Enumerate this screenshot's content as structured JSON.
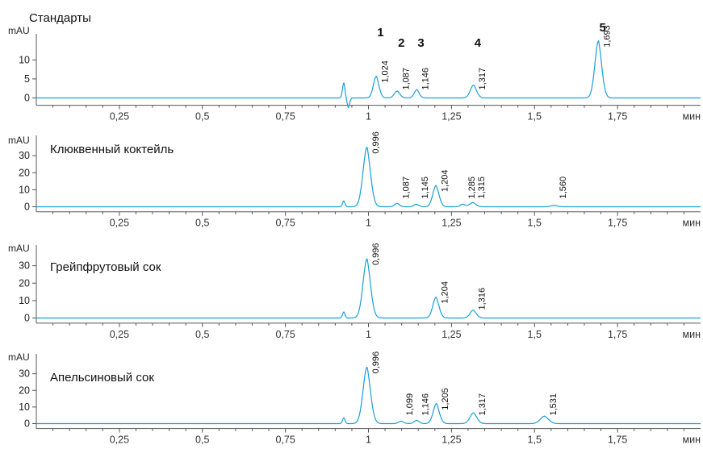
{
  "trace_color": "#1a9fd6",
  "chart_data": [
    {
      "type": "line",
      "title": "Стандарты",
      "ylabel": "mAU",
      "xlabel": "мин",
      "xlim": [
        0,
        2.0
      ],
      "ylim": [
        -1.5,
        16
      ],
      "yticks": [
        0,
        5,
        10
      ],
      "xticks": [
        0.25,
        0.5,
        0.75,
        1,
        1.25,
        1.5,
        1.75
      ],
      "xtick_labels": [
        "0,25",
        "0,5",
        "0,75",
        "1",
        "1,25",
        "1,5",
        "1,75"
      ],
      "peaks": [
        {
          "rt": 0.926,
          "height": 4,
          "width": 0.004
        },
        {
          "rt": 0.94,
          "height": -2.5,
          "width": 0.004
        },
        {
          "rt": 1.024,
          "height": 5.7,
          "width": 0.009
        },
        {
          "rt": 1.087,
          "height": 1.8,
          "width": 0.009
        },
        {
          "rt": 1.146,
          "height": 2.2,
          "width": 0.008
        },
        {
          "rt": 1.317,
          "height": 3.4,
          "width": 0.01
        },
        {
          "rt": 1.693,
          "height": 15,
          "width": 0.011
        }
      ],
      "peak_labels": [
        {
          "rt": 1.024,
          "label": "1,024"
        },
        {
          "rt": 1.087,
          "label": "1,087"
        },
        {
          "rt": 1.146,
          "label": "1,146"
        },
        {
          "rt": 1.317,
          "label": "1,317"
        },
        {
          "rt": 1.693,
          "label": "1,693"
        }
      ],
      "peak_numbers": [
        {
          "rt": 1.024,
          "label": "1"
        },
        {
          "rt": 1.087,
          "label": "2"
        },
        {
          "rt": 1.146,
          "label": "3"
        },
        {
          "rt": 1.317,
          "label": "4"
        },
        {
          "rt": 1.693,
          "label": "5"
        }
      ]
    },
    {
      "type": "line",
      "title": "Клюквенный коктейль",
      "ylabel": "mAU",
      "xlabel": "мин",
      "xlim": [
        0,
        2.0
      ],
      "ylim": [
        -2,
        40
      ],
      "yticks": [
        0,
        10,
        20,
        30
      ],
      "xticks": [
        0.25,
        0.5,
        0.75,
        1,
        1.25,
        1.5,
        1.75
      ],
      "xtick_labels": [
        "0,25",
        "0,5",
        "0,75",
        "1",
        "1,25",
        "1,5",
        "1,75"
      ],
      "peaks": [
        {
          "rt": 0.926,
          "height": 3.5,
          "width": 0.004
        },
        {
          "rt": 0.996,
          "height": 35,
          "width": 0.012
        },
        {
          "rt": 1.087,
          "height": 2.0,
          "width": 0.008
        },
        {
          "rt": 1.145,
          "height": 1.5,
          "width": 0.008
        },
        {
          "rt": 1.204,
          "height": 12.5,
          "width": 0.01
        },
        {
          "rt": 1.285,
          "height": 1.5,
          "width": 0.008
        },
        {
          "rt": 1.315,
          "height": 2.5,
          "width": 0.01
        },
        {
          "rt": 1.56,
          "height": 0.8,
          "width": 0.01
        }
      ],
      "peak_labels": [
        {
          "rt": 0.996,
          "label": "0,996"
        },
        {
          "rt": 1.087,
          "label": "1,087"
        },
        {
          "rt": 1.145,
          "label": "1,145"
        },
        {
          "rt": 1.204,
          "label": "1,204"
        },
        {
          "rt": 1.285,
          "label": "1,285"
        },
        {
          "rt": 1.315,
          "label": "1,315"
        },
        {
          "rt": 1.56,
          "label": "1,560"
        }
      ],
      "peak_numbers": []
    },
    {
      "type": "line",
      "title": "Грейпфрутовый сок",
      "ylabel": "mAU",
      "xlabel": "мин",
      "xlim": [
        0,
        2.0
      ],
      "ylim": [
        -2,
        40
      ],
      "yticks": [
        0,
        10,
        20,
        30
      ],
      "xticks": [
        0.25,
        0.5,
        0.75,
        1,
        1.25,
        1.5,
        1.75
      ],
      "xtick_labels": [
        "0,25",
        "0,5",
        "0,75",
        "1",
        "1,25",
        "1,5",
        "1,75"
      ],
      "peaks": [
        {
          "rt": 0.926,
          "height": 3.5,
          "width": 0.004
        },
        {
          "rt": 0.996,
          "height": 34,
          "width": 0.012
        },
        {
          "rt": 1.204,
          "height": 12,
          "width": 0.01
        },
        {
          "rt": 1.316,
          "height": 4.5,
          "width": 0.01
        }
      ],
      "peak_labels": [
        {
          "rt": 0.996,
          "label": "0,996"
        },
        {
          "rt": 1.204,
          "label": "1,204"
        },
        {
          "rt": 1.316,
          "label": "1,316"
        }
      ],
      "peak_numbers": []
    },
    {
      "type": "line",
      "title": "Апельсиновый сок",
      "ylabel": "mAU",
      "xlabel": "мин",
      "xlim": [
        0,
        2.0
      ],
      "ylim": [
        -2,
        40
      ],
      "yticks": [
        0,
        10,
        20,
        30
      ],
      "xticks": [
        0.25,
        0.5,
        0.75,
        1,
        1.25,
        1.5,
        1.75
      ],
      "xtick_labels": [
        "0,25",
        "0,5",
        "0,75",
        "1",
        "1,25",
        "1,5",
        "1,75"
      ],
      "peaks": [
        {
          "rt": 0.926,
          "height": 3.5,
          "width": 0.004
        },
        {
          "rt": 0.996,
          "height": 34,
          "width": 0.012
        },
        {
          "rt": 1.099,
          "height": 1.5,
          "width": 0.008
        },
        {
          "rt": 1.146,
          "height": 2.0,
          "width": 0.008
        },
        {
          "rt": 1.205,
          "height": 12,
          "width": 0.01
        },
        {
          "rt": 1.317,
          "height": 6.5,
          "width": 0.011
        },
        {
          "rt": 1.531,
          "height": 4.5,
          "width": 0.013
        }
      ],
      "peak_labels": [
        {
          "rt": 0.996,
          "label": "0,996"
        },
        {
          "rt": 1.099,
          "label": "1,099"
        },
        {
          "rt": 1.146,
          "label": "1,146"
        },
        {
          "rt": 1.205,
          "label": "1,205"
        },
        {
          "rt": 1.317,
          "label": "1,317"
        },
        {
          "rt": 1.531,
          "label": "1,531"
        }
      ],
      "peak_numbers": []
    }
  ]
}
